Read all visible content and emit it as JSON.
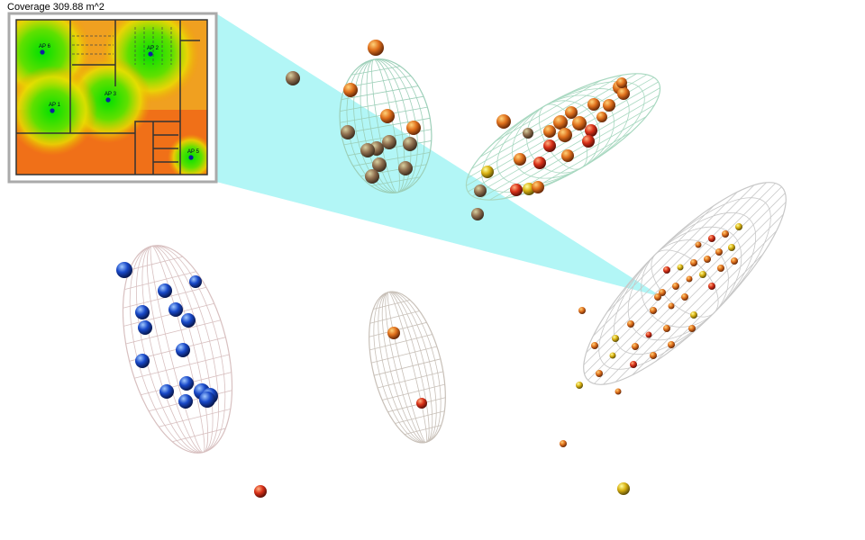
{
  "title": "Coverage 309.88 m^2",
  "access_points": [
    {
      "label": "AP 6"
    },
    {
      "label": "AP 2"
    },
    {
      "label": "AP 3"
    },
    {
      "label": "AP 1"
    },
    {
      "label": "AP 5"
    }
  ]
}
